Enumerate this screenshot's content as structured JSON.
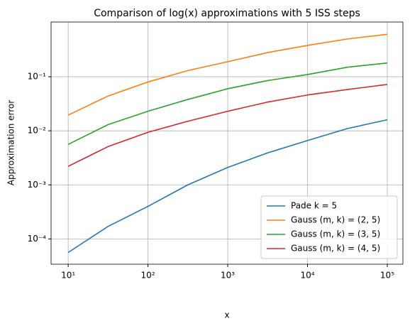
{
  "chart_data": {
    "type": "line",
    "title": "Comparison of log(x) approximations with 5 ISS steps",
    "x_label": "x",
    "y_label": "Approximation error",
    "x": [
      10,
      31.6,
      100,
      316,
      1000,
      3162,
      10000,
      31623,
      100000
    ],
    "series": [
      {
        "name": "Pade k = 5",
        "color": "#1f77b4",
        "values": [
          5.6e-05,
          0.00017,
          0.0004,
          0.001,
          0.0021,
          0.0039,
          0.0066,
          0.011,
          0.016
        ]
      },
      {
        "name": "Gauss (m, k) = (2, 5)",
        "color": "#ff7f0e",
        "values": [
          0.0195,
          0.044,
          0.08,
          0.13,
          0.19,
          0.28,
          0.38,
          0.5,
          0.61
        ]
      },
      {
        "name": "Gauss (m, k) = (3, 5)",
        "color": "#2ca02c",
        "values": [
          0.0056,
          0.013,
          0.023,
          0.038,
          0.06,
          0.085,
          0.11,
          0.15,
          0.18
        ]
      },
      {
        "name": "Gauss (m, k) = (4, 5)",
        "color": "#d62728",
        "values": [
          0.0022,
          0.0051,
          0.0094,
          0.015,
          0.023,
          0.034,
          0.046,
          0.058,
          0.072
        ]
      }
    ],
    "xlim": [
      6.1,
      157000
    ],
    "ylim": [
      3.4e-05,
      1.03
    ],
    "xticks": [
      {
        "value": 10,
        "label": "10¹"
      },
      {
        "value": 100,
        "label": "10²"
      },
      {
        "value": 1000,
        "label": "10³"
      },
      {
        "value": 10000,
        "label": "10⁴"
      },
      {
        "value": 100000,
        "label": "10⁵"
      }
    ],
    "yticks": [
      {
        "value": 0.0001,
        "label": "10⁻⁴"
      },
      {
        "value": 0.001,
        "label": "10⁻³"
      },
      {
        "value": 0.01,
        "label": "10⁻²"
      },
      {
        "value": 0.1,
        "label": "10⁻¹"
      }
    ],
    "xscale": "log",
    "yscale": "log",
    "grid": true,
    "legend": "lower right"
  }
}
